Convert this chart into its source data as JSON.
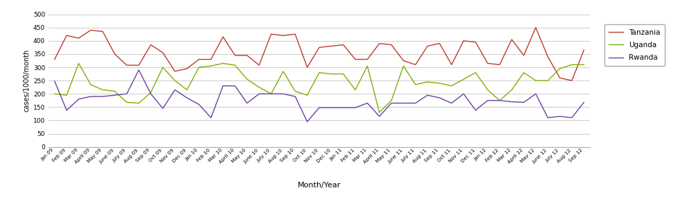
{
  "labels": [
    "Jan 09",
    "Feb 09",
    "Mar 09",
    "April 09",
    "May 09",
    "June 09",
    "July 09",
    "Aug 09",
    "Sep 09",
    "Oct 09",
    "Nov 09",
    "Dec 09",
    "Jan 10",
    "Feb 10",
    "Mar 10",
    "April 10",
    "May 10",
    "June 10",
    "July 10",
    "Aug 10",
    "Sep 10",
    "Oct 10",
    "Nov 10",
    "Dec 10",
    "Jan 11",
    "Feb 11",
    "Mar 11",
    "April 11",
    "May 11",
    "June 11",
    "July 11",
    "Aug 11",
    "Sep 11",
    "Oct 11",
    "Nov 11",
    "Dec 11",
    "Jan 12",
    "Feb 12",
    "Mar 12",
    "April 12",
    "May 12",
    "June 12",
    "July 12",
    "Aug 12",
    "Sep 12"
  ],
  "tanzania": [
    330,
    420,
    410,
    440,
    435,
    350,
    308,
    308,
    385,
    355,
    285,
    295,
    330,
    330,
    415,
    345,
    345,
    308,
    425,
    420,
    425,
    300,
    375,
    380,
    385,
    330,
    330,
    390,
    385,
    325,
    310,
    380,
    390,
    310,
    400,
    395,
    315,
    310,
    405,
    345,
    450,
    340,
    260,
    250,
    365
  ],
  "uganda": [
    200,
    195,
    315,
    235,
    215,
    210,
    168,
    165,
    205,
    300,
    250,
    215,
    300,
    305,
    315,
    308,
    255,
    225,
    200,
    285,
    210,
    195,
    280,
    275,
    275,
    215,
    305,
    130,
    175,
    305,
    235,
    245,
    240,
    230,
    255,
    280,
    215,
    175,
    215,
    280,
    250,
    250,
    295,
    310,
    310
  ],
  "rwanda": [
    248,
    138,
    180,
    190,
    190,
    195,
    200,
    290,
    200,
    145,
    215,
    185,
    160,
    110,
    230,
    230,
    165,
    200,
    200,
    200,
    190,
    95,
    148,
    148,
    148,
    148,
    165,
    115,
    165,
    165,
    165,
    195,
    185,
    165,
    200,
    138,
    175,
    175,
    170,
    168,
    200,
    110,
    115,
    110,
    168
  ],
  "tanzania_color": "#c0392b",
  "uganda_color": "#7db000",
  "rwanda_color": "#6b3fa0",
  "ylabel": "cases/1000/month",
  "xlabel": "Month/Year",
  "ylim": [
    0,
    500
  ],
  "yticks": [
    0,
    50,
    100,
    150,
    200,
    250,
    300,
    350,
    400,
    450,
    500
  ],
  "background_color": "#ffffff",
  "grid_color": "#cccccc",
  "figsize": [
    10.0,
    2.94
  ],
  "dpi": 100
}
